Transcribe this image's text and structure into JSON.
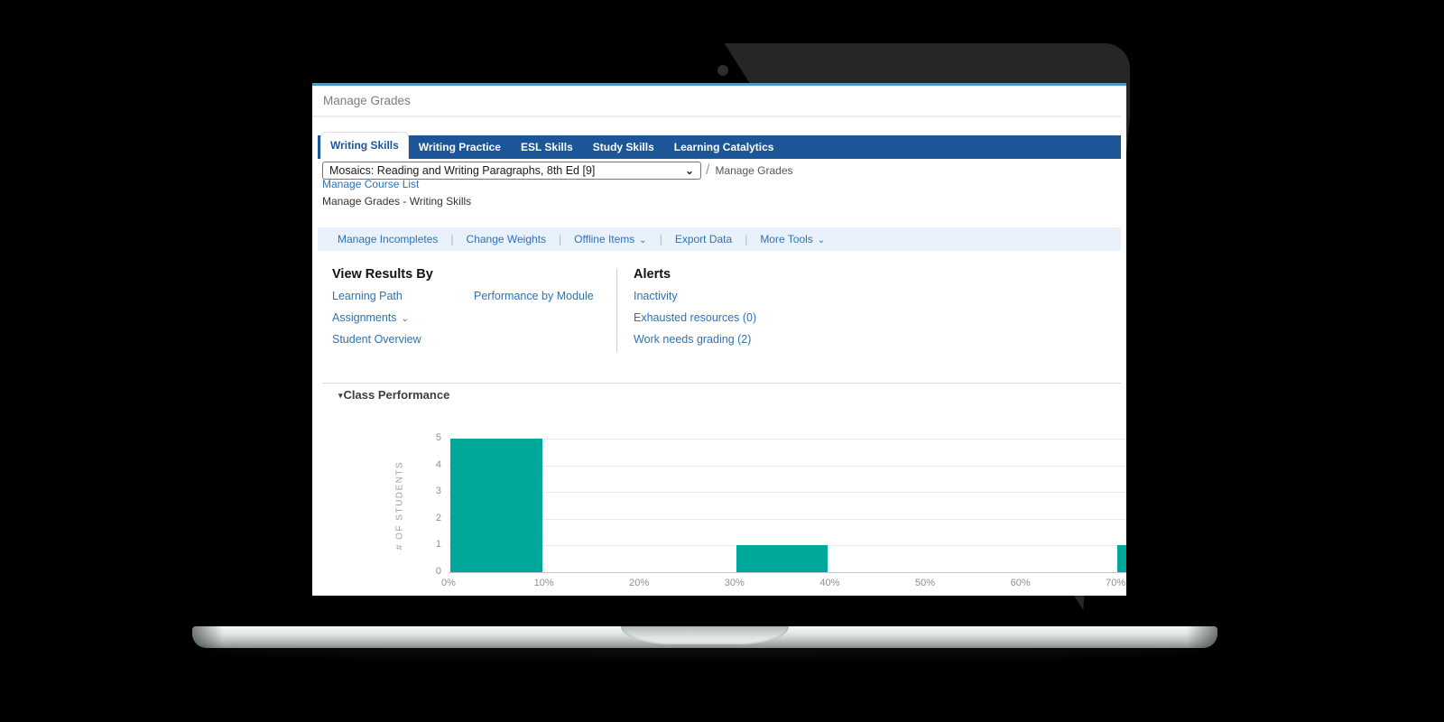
{
  "window": {
    "title": "Manage Grades"
  },
  "tabs": {
    "items": [
      {
        "label": "Writing Skills",
        "active": true
      },
      {
        "label": "Writing Practice",
        "active": false
      },
      {
        "label": "ESL Skills",
        "active": false
      },
      {
        "label": "Study Skills",
        "active": false
      },
      {
        "label": "Learning Catalytics",
        "active": false
      }
    ]
  },
  "course_selector": {
    "value": "Mosaics: Reading and Writing Paragraphs, 8th Ed [9]",
    "breadcrumb_separator": "/",
    "breadcrumb": "Manage Grades"
  },
  "links": {
    "manage_course_list": "Manage Course List"
  },
  "page_heading": "Manage Grades - Writing Skills",
  "toolbar": {
    "separator": "|",
    "items": [
      {
        "label": "Manage Incompletes",
        "dropdown": false
      },
      {
        "label": "Change Weights",
        "dropdown": false
      },
      {
        "label": "Offline Items",
        "dropdown": true
      },
      {
        "label": "Export Data",
        "dropdown": false
      },
      {
        "label": "More Tools",
        "dropdown": true
      }
    ]
  },
  "view_results_by": {
    "heading": "View Results By",
    "learning_path": "Learning Path",
    "performance_by_module": "Performance by Module",
    "assignments": "Assignments",
    "student_overview": "Student Overview"
  },
  "alerts": {
    "heading": "Alerts",
    "items": [
      "Inactivity",
      "Exhausted resources (0)",
      "Work needs grading (2)"
    ]
  },
  "icons": {
    "select_chevron": "⌄",
    "dropdown_chevron": "⌄",
    "collapse_triangle": "▾"
  },
  "colors": {
    "tab_bar_blue": "#1d5697",
    "link_blue": "#2e72b4",
    "toolbar_background": "#e9f1fb",
    "screen_top_border": "#4a9cc6",
    "bar_teal": "#00a89c"
  },
  "chart_data": {
    "type": "bar",
    "title": "Class Performance",
    "xlabel": "",
    "ylabel": "# OF STUDENTS",
    "x_tick_labels": [
      "0%",
      "10%",
      "20%",
      "30%",
      "40%",
      "50%",
      "60%",
      "70%"
    ],
    "y_ticks": [
      0,
      1,
      2,
      3,
      4,
      5
    ],
    "ylim": [
      0,
      5
    ],
    "grid": true,
    "bar_color": "#00a89c",
    "bars": [
      {
        "range_start_pct": 0,
        "range_end_pct": 10,
        "students": 5
      },
      {
        "range_start_pct": 30,
        "range_end_pct": 40,
        "students": 1
      },
      {
        "range_start_pct": 70,
        "range_end_pct": 80,
        "students": 1
      }
    ]
  }
}
